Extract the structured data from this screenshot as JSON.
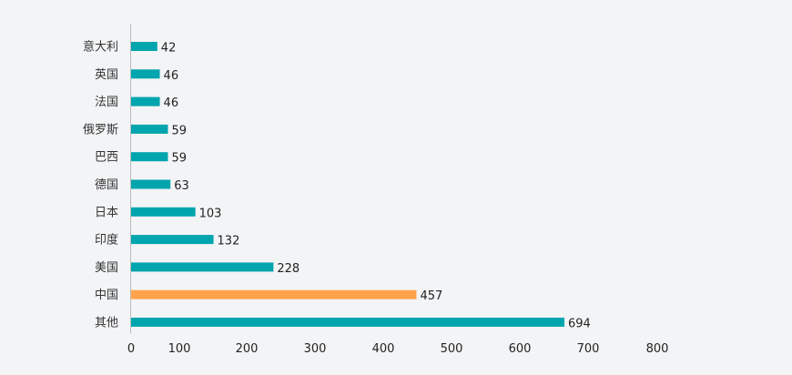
{
  "chart_data": {
    "type": "bar",
    "orientation": "horizontal",
    "categories": [
      "意大利",
      "英国",
      "法国",
      "俄罗斯",
      "巴西",
      "德国",
      "日本",
      "印度",
      "美国",
      "中国",
      "其他"
    ],
    "values": [
      42,
      46,
      46,
      59,
      59,
      63,
      103,
      132,
      228,
      457,
      694
    ],
    "highlight": "中国",
    "colors": {
      "default": "#00a5ad",
      "highlight": "#ffa24c",
      "axis": "#bbbbbb"
    },
    "xlim": [
      0,
      800
    ],
    "xticks": [
      "0",
      "100",
      "200",
      "300",
      "400",
      "500",
      "600",
      "700",
      "800"
    ],
    "grid": false,
    "title": "",
    "xlabel": "",
    "ylabel": ""
  }
}
